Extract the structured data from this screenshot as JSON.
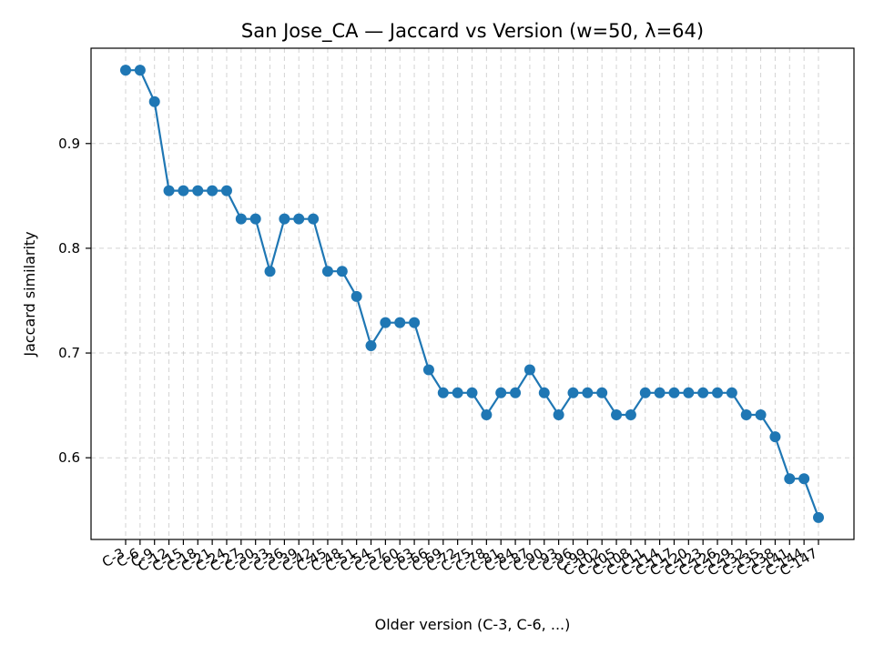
{
  "chart_data": {
    "type": "line",
    "title": "San Jose_CA — Jaccard vs Version (w=50, λ=64)",
    "xlabel": "Older version (C-3, C-6, ...)",
    "ylabel": "Jaccard similarity",
    "categories": [
      "C-3",
      "C-6",
      "C-9",
      "C-12",
      "C-15",
      "C-18",
      "C-21",
      "C-24",
      "C-27",
      "C-30",
      "C-33",
      "C-36",
      "C-39",
      "C-42",
      "C-45",
      "C-48",
      "C-51",
      "C-54",
      "C-57",
      "C-60",
      "C-63",
      "C-66",
      "C-69",
      "C-72",
      "C-75",
      "C-78",
      "C-81",
      "C-84",
      "C-87",
      "C-90",
      "C-93",
      "C-96",
      "C-99",
      "C-102",
      "C-105",
      "C-108",
      "C-111",
      "C-114",
      "C-117",
      "C-120",
      "C-123",
      "C-126",
      "C-129",
      "C-132",
      "C-135",
      "C-138",
      "C-141",
      "C-144",
      "C-147"
    ],
    "series": [
      {
        "values": [
          0.97,
          0.97,
          0.94,
          0.855,
          0.855,
          0.855,
          0.855,
          0.855,
          0.828,
          0.828,
          0.778,
          0.828,
          0.828,
          0.828,
          0.778,
          0.778,
          0.754,
          0.707,
          0.729,
          0.729,
          0.729,
          0.684,
          0.662,
          0.662,
          0.662,
          0.641,
          0.662,
          0.662,
          0.684,
          0.662,
          0.641,
          0.662,
          0.662,
          0.662,
          0.641,
          0.641,
          0.662,
          0.662,
          0.662,
          0.662,
          0.662,
          0.662,
          0.662,
          0.641,
          0.641,
          0.62,
          0.58,
          0.58,
          0.543
        ],
        "color": "#1f77b4"
      }
    ],
    "yticks": [
      0.6,
      0.7,
      0.8,
      0.9
    ],
    "ylim": [
      0.522,
      0.991
    ],
    "grid": true,
    "legend": "none"
  }
}
